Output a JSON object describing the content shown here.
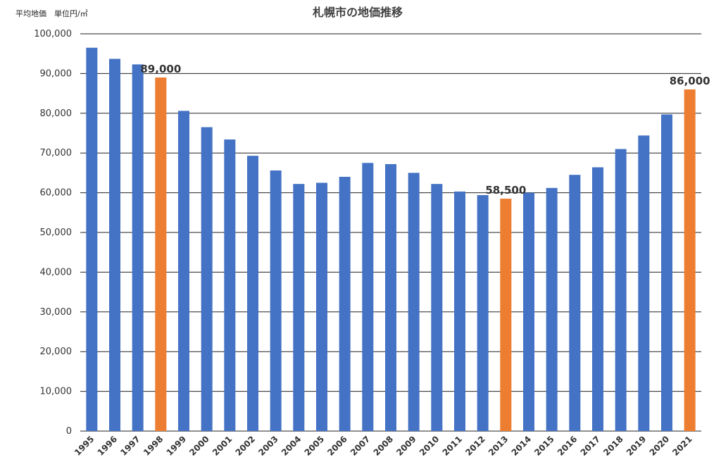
{
  "chart_data": {
    "type": "bar",
    "title": "札幌市の地価推移",
    "ylabel": "平均地価　単位円/㎡",
    "xlabel": "",
    "ylim": [
      0,
      100000
    ],
    "y_ticks": [
      "0",
      "10,000",
      "20,000",
      "30,000",
      "40,000",
      "50,000",
      "60,000",
      "70,000",
      "80,000",
      "90,000",
      "100,000"
    ],
    "grid": true,
    "categories": [
      "1995",
      "1996",
      "1997",
      "1998",
      "1999",
      "2000",
      "2001",
      "2002",
      "2003",
      "2004",
      "2005",
      "2006",
      "2007",
      "2008",
      "2009",
      "2010",
      "2011",
      "2012",
      "2013",
      "2014",
      "2015",
      "2016",
      "2017",
      "2018",
      "2019",
      "2020",
      "2021"
    ],
    "values": [
      96500,
      93700,
      92300,
      89000,
      80600,
      76500,
      73400,
      69300,
      65600,
      62200,
      62500,
      64000,
      67500,
      67200,
      65000,
      62200,
      60300,
      59400,
      58500,
      60000,
      61200,
      64500,
      66400,
      71000,
      74400,
      79700,
      86000
    ],
    "highlight_indices": [
      3,
      18,
      26
    ],
    "data_labels": [
      {
        "index": 3,
        "text": "89,000"
      },
      {
        "index": 18,
        "text": "58,500"
      },
      {
        "index": 26,
        "text": "86,000"
      }
    ],
    "colors": {
      "bar": "#4472C4",
      "highlight": "#ED7D31",
      "grid": "#222222"
    }
  }
}
